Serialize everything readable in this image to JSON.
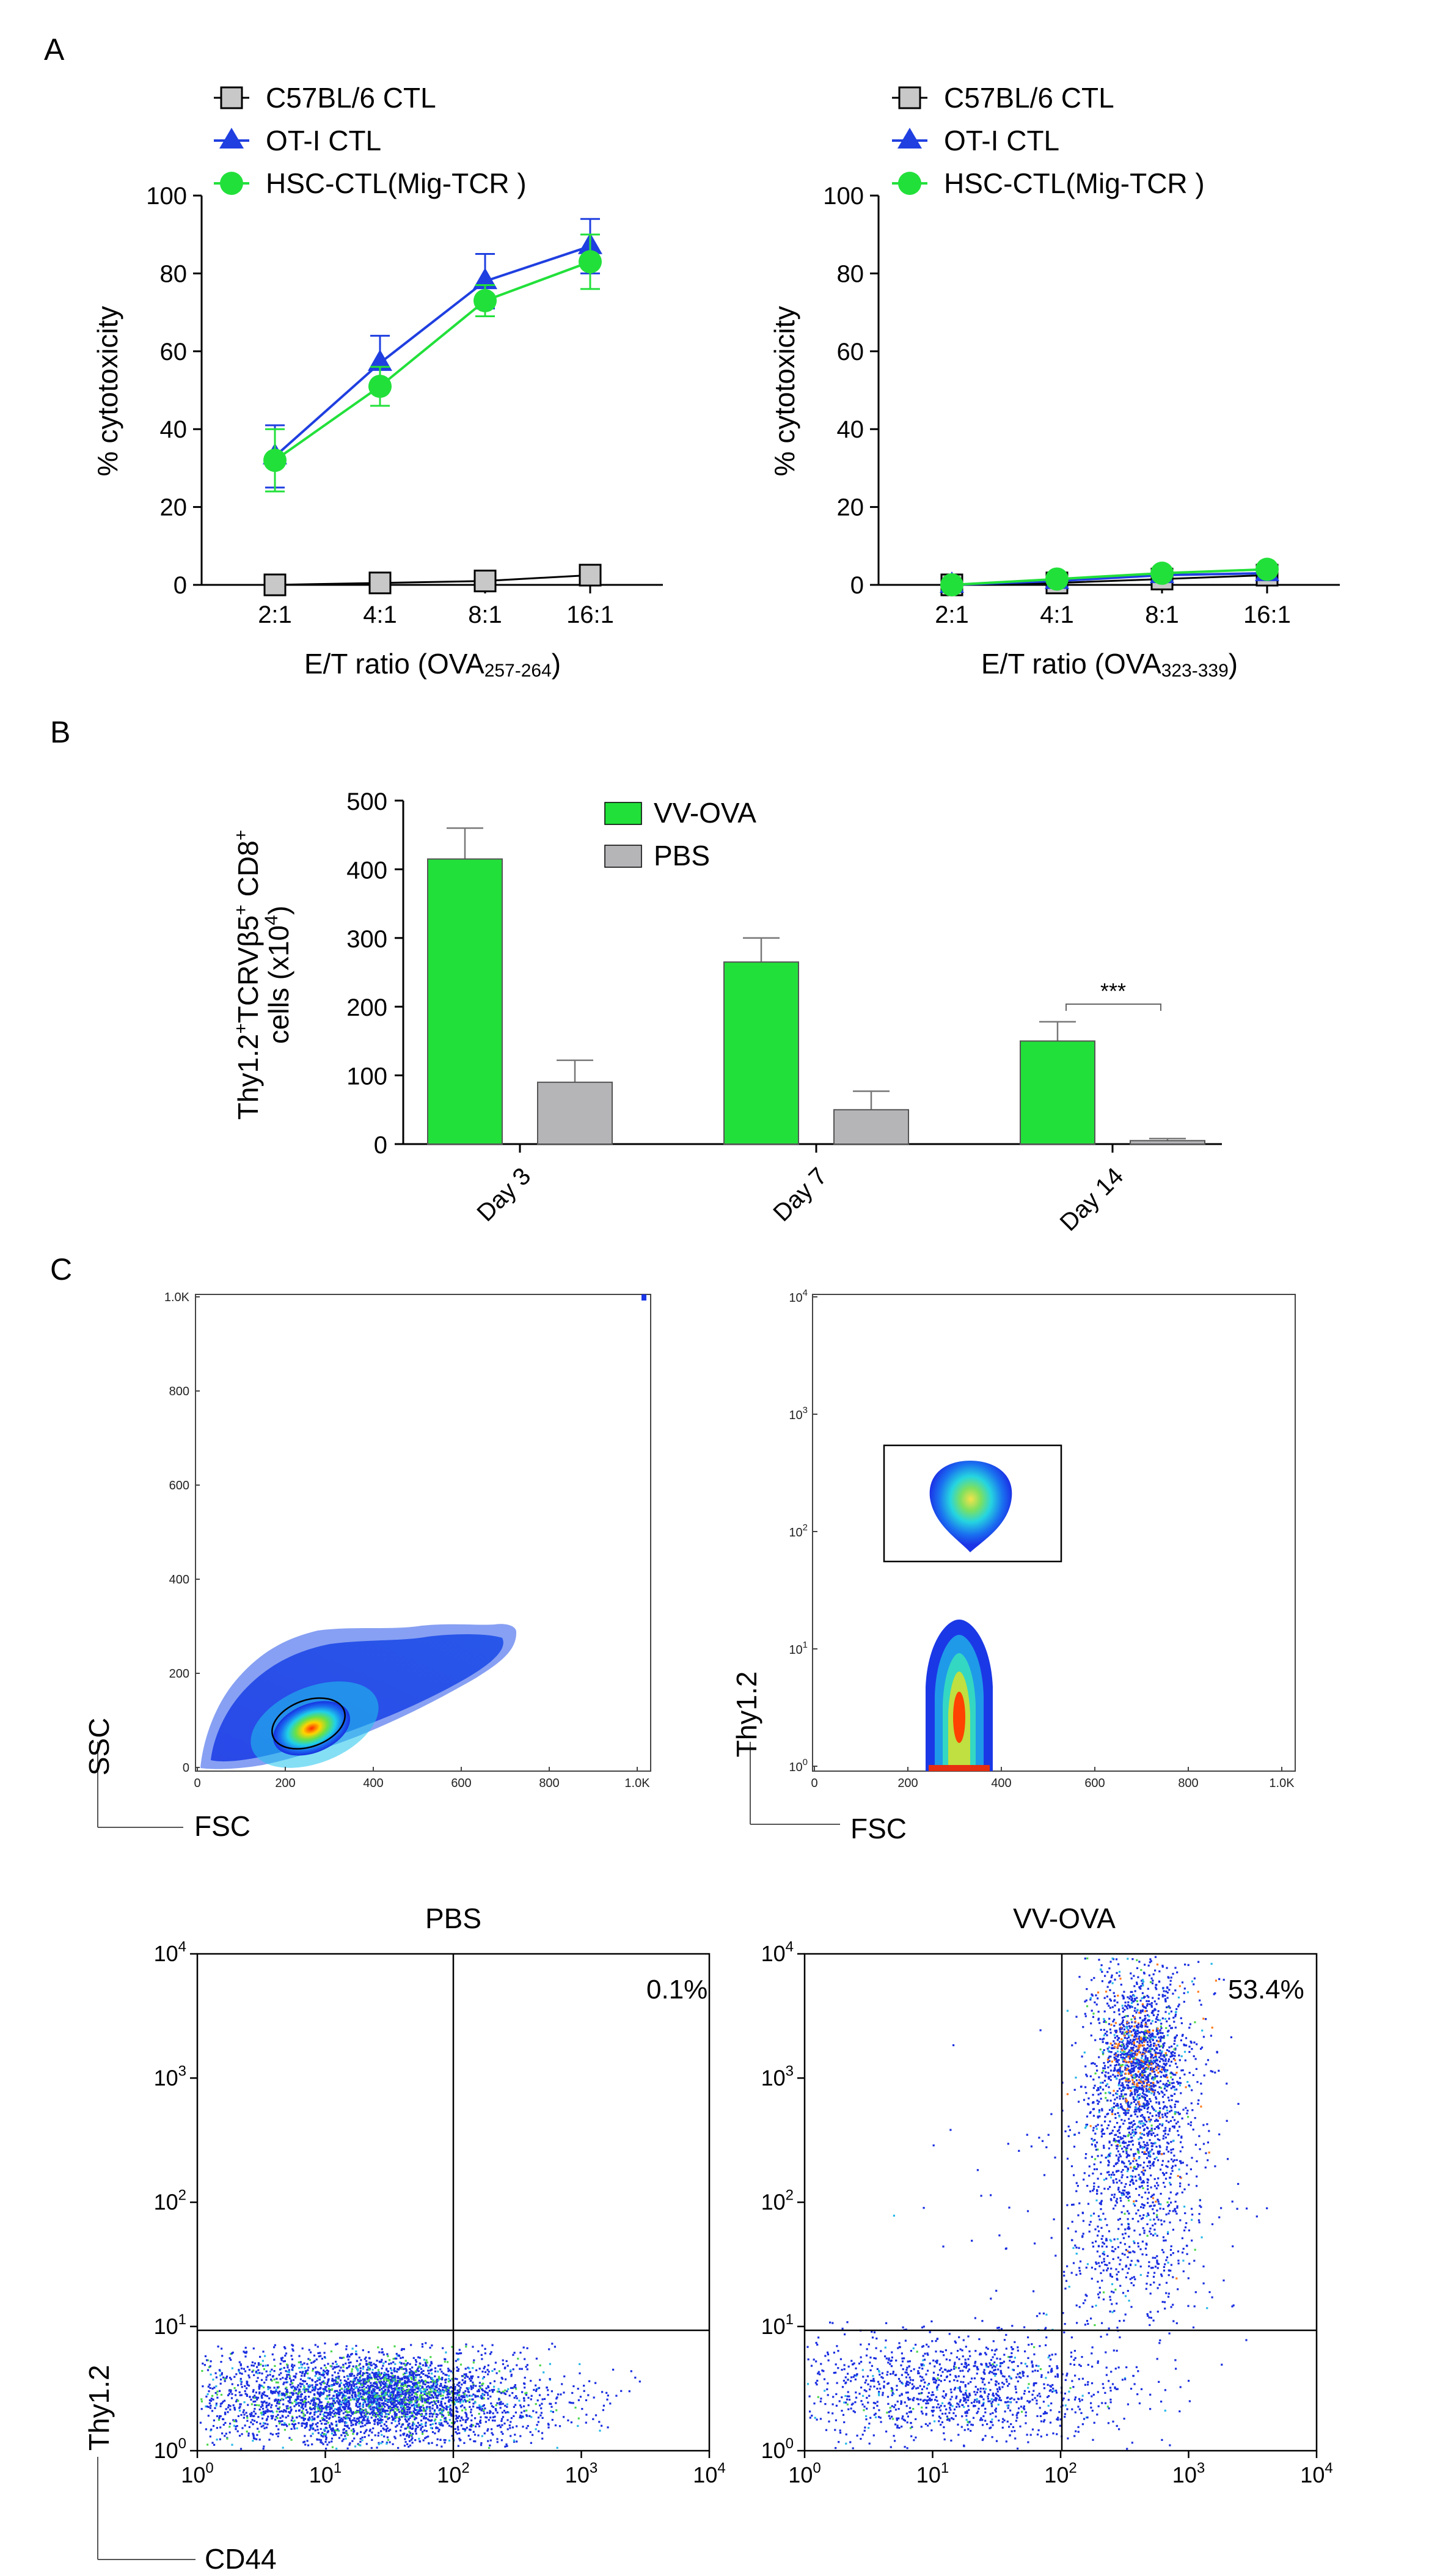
{
  "panel_labels": {
    "a": "A",
    "b": "B",
    "c": "C"
  },
  "colors": {
    "c57": "#c8c8c8",
    "ot1": "#1f3fe0",
    "hsc": "#22e03a",
    "vv": "#22e03a",
    "pbs": "#b5b5b8"
  },
  "icons": {
    "c57": "square-marker-icon",
    "ot1": "triangle-marker-icon",
    "hsc": "circle-marker-icon"
  },
  "chart_data": [
    {
      "type": "line",
      "ylabel": "% cytotoxicity",
      "xlabel_main": "E/T ratio (OVA",
      "xlabel_sub": "257-264",
      "xlabel_end": ")",
      "categories": [
        "2:1",
        "4:1",
        "8:1",
        "16:1"
      ],
      "ylim": [
        0,
        100
      ],
      "yticks": [
        "0",
        "20",
        "40",
        "60",
        "80",
        "100"
      ],
      "series": [
        {
          "name": "C57BL/6 CTL",
          "values": [
            0,
            0.5,
            1,
            2.5
          ],
          "errors": [
            0,
            0,
            0,
            0
          ]
        },
        {
          "name": "OT-I CTL",
          "values": [
            33,
            57,
            78,
            87
          ],
          "errors": [
            8,
            7,
            7,
            7
          ]
        },
        {
          "name": "HSC-CTL(Mig-TCR )",
          "values": [
            32,
            51,
            73,
            83
          ],
          "errors": [
            8,
            5,
            4,
            7
          ]
        }
      ]
    },
    {
      "type": "line",
      "ylabel": "% cytotoxicity",
      "xlabel_main": "E/T ratio (OVA",
      "xlabel_sub": "323-339",
      "xlabel_end": ")",
      "categories": [
        "2:1",
        "4:1",
        "8:1",
        "16:1"
      ],
      "ylim": [
        0,
        100
      ],
      "yticks": [
        "0",
        "20",
        "40",
        "60",
        "80",
        "100"
      ],
      "series": [
        {
          "name": "C57BL/6 CTL",
          "values": [
            0,
            0.5,
            1.5,
            2.5
          ],
          "errors": [
            0,
            0,
            0,
            0
          ]
        },
        {
          "name": "OT-I CTL",
          "values": [
            0,
            1,
            2.5,
            3
          ],
          "errors": [
            0,
            0,
            0,
            0
          ]
        },
        {
          "name": "HSC-CTL(Mig-TCR )",
          "values": [
            0,
            1.5,
            3,
            4
          ],
          "errors": [
            0,
            0,
            0,
            0
          ]
        }
      ]
    },
    {
      "type": "bar",
      "ylabel_line1": "Thy1.2",
      "ylabel_line1_sup1": "+",
      "ylabel_line1_mid": "TCRVβ5",
      "ylabel_line1_sup2": "+",
      "ylabel_line1_end": " CD8",
      "ylabel_line1_sup3": "+",
      "ylabel_line2": "cells (x10",
      "ylabel_line2_sup": "4",
      "ylabel_line2_end": ")",
      "categories": [
        "Day 3",
        "Day 7",
        "Day 14"
      ],
      "ylim": [
        0,
        500
      ],
      "yticks": [
        "0",
        "100",
        "200",
        "300",
        "400",
        "500"
      ],
      "series": [
        {
          "name": "VV-OVA",
          "values": [
            415,
            265,
            150
          ],
          "errors": [
            45,
            35,
            28
          ]
        },
        {
          "name": "PBS",
          "values": [
            90,
            50,
            5
          ],
          "errors": [
            32,
            27,
            3
          ]
        }
      ],
      "significance": "***"
    },
    {
      "type": "scatter",
      "subtype": "flow-density",
      "xlabel": "FSC",
      "ylabel": "SSC",
      "xticks": [
        "0",
        "200",
        "400",
        "600",
        "800",
        "1.0K"
      ],
      "yticks": [
        "0",
        "200",
        "400",
        "600",
        "800",
        "1.0K"
      ]
    },
    {
      "type": "scatter",
      "subtype": "flow-density",
      "xlabel": "FSC",
      "ylabel": "Thy1.2",
      "xticks": [
        "0",
        "200",
        "400",
        "600",
        "800",
        "1.0K"
      ],
      "yticks_exp": [
        "0",
        "1",
        "2",
        "3",
        "4"
      ],
      "tick_base": "10"
    },
    {
      "type": "scatter",
      "subtype": "flow-dot",
      "title": "PBS",
      "xlabel": "CD44",
      "ylabel": "Thy1.2",
      "quadrant_percent": "0.1%",
      "tick_base": "10",
      "ticks_exp": [
        "0",
        "1",
        "2",
        "3",
        "4"
      ]
    },
    {
      "type": "scatter",
      "subtype": "flow-dot",
      "title": "VV-OVA",
      "xlabel": "CD44",
      "ylabel": "Thy1.2",
      "quadrant_percent": "53.4%",
      "tick_base": "10",
      "ticks_exp": [
        "0",
        "1",
        "2",
        "3",
        "4"
      ]
    }
  ]
}
